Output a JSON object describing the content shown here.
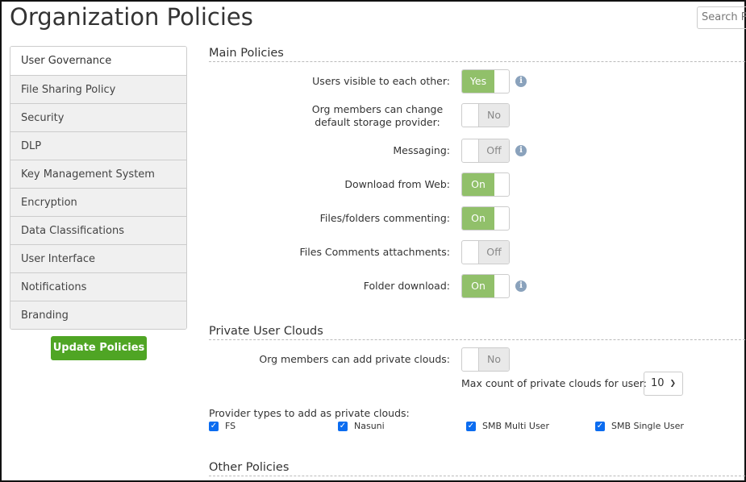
{
  "header": {
    "title": "Organization Policies",
    "search_placeholder": "Search Po"
  },
  "sidebar": {
    "items": [
      {
        "label": "User Governance"
      },
      {
        "label": "File Sharing Policy"
      },
      {
        "label": "Security"
      },
      {
        "label": "DLP"
      },
      {
        "label": "Key Management System"
      },
      {
        "label": "Encryption"
      },
      {
        "label": "Data Classifications"
      },
      {
        "label": "User Interface"
      },
      {
        "label": "Notifications"
      },
      {
        "label": "Branding"
      }
    ],
    "update_label": "Update Policies"
  },
  "main": {
    "title": "Main Policies",
    "rows": [
      {
        "label": "Users visible to each other:",
        "value": "Yes",
        "on": true,
        "info": true
      },
      {
        "label": "Org members can change default storage provider:",
        "value": "No",
        "on": false,
        "info": false
      },
      {
        "label": "Messaging:",
        "value": "Off",
        "on": false,
        "info": true
      },
      {
        "label": "Download from Web:",
        "value": "On",
        "on": true,
        "info": false
      },
      {
        "label": "Files/folders commenting:",
        "value": "On",
        "on": true,
        "info": false
      },
      {
        "label": "Files Comments attachments:",
        "value": "Off",
        "on": false,
        "info": false
      },
      {
        "label": "Folder download:",
        "value": "On",
        "on": true,
        "info": true
      }
    ]
  },
  "private": {
    "title": "Private User Clouds",
    "add_label": "Org members can add private clouds:",
    "add_value": "No",
    "max_label": "Max count of private clouds for user:",
    "max_value": "10",
    "providers_label": "Provider types to add as private clouds:",
    "providers": [
      {
        "label": "FS",
        "checked": true
      },
      {
        "label": "Nasuni",
        "checked": true
      },
      {
        "label": "SMB Multi User",
        "checked": true
      },
      {
        "label": "SMB Single User",
        "checked": true
      }
    ]
  },
  "other": {
    "title": "Other Policies"
  },
  "colors": {
    "toggle_on": "#91c06a",
    "button": "#4fa524",
    "checkbox": "#0b6cf0"
  }
}
